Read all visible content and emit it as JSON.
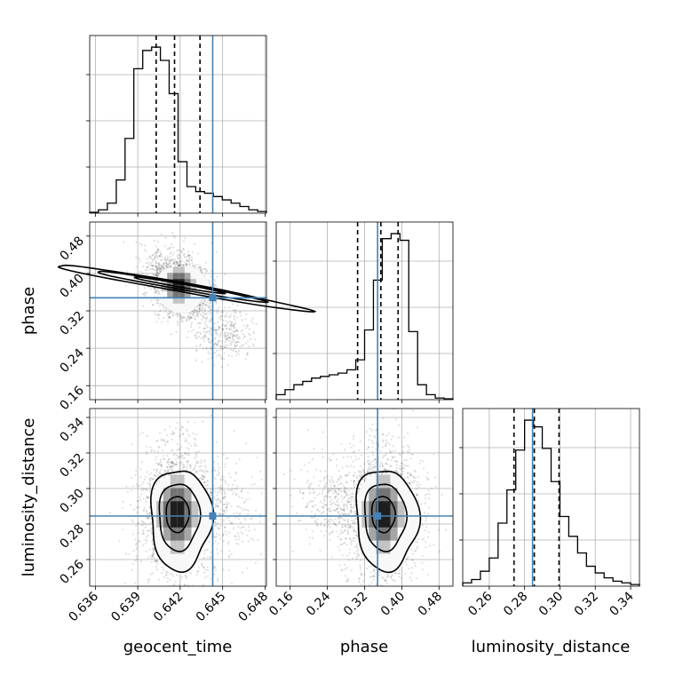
{
  "chart_data": {
    "type": "corner",
    "parameters": [
      "geocent_time",
      "phase",
      "luminosity_distance"
    ],
    "truth": {
      "geocent_time": 0.6443,
      "phase": 0.348,
      "luminosity_distance": 0.2845
    },
    "quantiles": {
      "geocent_time": [
        0.6403,
        0.6416,
        0.6434
      ],
      "phase": [
        0.305,
        0.355,
        0.392
      ],
      "luminosity_distance": [
        0.274,
        0.2855,
        0.2995
      ]
    },
    "axes": {
      "geocent_time": {
        "range": [
          0.6356,
          0.6481
        ],
        "ticks": [
          0.636,
          0.639,
          0.642,
          0.645,
          0.648
        ],
        "tick_labels": [
          "0.636",
          "0.639",
          "0.642",
          "0.645",
          "0.648"
        ]
      },
      "phase": {
        "range": [
          0.13,
          0.51
        ],
        "ticks": [
          0.16,
          0.24,
          0.32,
          0.4,
          0.48
        ],
        "tick_labels": [
          "0.16",
          "0.24",
          "0.32",
          "0.40",
          "0.48"
        ]
      },
      "luminosity_distance": {
        "range": [
          0.245,
          0.345
        ],
        "ticks": [
          0.26,
          0.28,
          0.3,
          0.32,
          0.34
        ],
        "tick_labels": [
          "0.26",
          "0.28",
          "0.30",
          "0.32",
          "0.34"
        ]
      }
    },
    "histograms": {
      "geocent_time": {
        "bin_edges": [
          0.6356,
          0.63622,
          0.63685,
          0.63748,
          0.6381,
          0.63872,
          0.63935,
          0.63998,
          0.6406,
          0.64122,
          0.64185,
          0.64248,
          0.6431,
          0.64372,
          0.64435,
          0.64498,
          0.6456,
          0.64622,
          0.64685,
          0.64748,
          0.6481
        ],
        "counts": [
          0.5,
          2,
          6,
          20,
          45,
          87,
          98,
          100,
          92,
          72,
          31,
          16,
          13,
          12,
          10,
          8,
          6,
          4,
          2,
          1
        ]
      },
      "phase": {
        "bin_edges": [
          0.13,
          0.149,
          0.168,
          0.187,
          0.206,
          0.225,
          0.244,
          0.263,
          0.282,
          0.301,
          0.32,
          0.339,
          0.358,
          0.377,
          0.396,
          0.415,
          0.434,
          0.453,
          0.472,
          0.491,
          0.51
        ],
        "counts": [
          3,
          6,
          9,
          11,
          13,
          14,
          15,
          16,
          18,
          24,
          42,
          72,
          97,
          100,
          96,
          41,
          9,
          3,
          1,
          0.5
        ]
      },
      "luminosity_distance": {
        "bin_edges": [
          0.245,
          0.25,
          0.255,
          0.26,
          0.265,
          0.27,
          0.275,
          0.28,
          0.285,
          0.29,
          0.295,
          0.3,
          0.305,
          0.31,
          0.315,
          0.32,
          0.325,
          0.33,
          0.335,
          0.34,
          0.345
        ],
        "counts": [
          2,
          4,
          9,
          17,
          38,
          58,
          82,
          100,
          96,
          83,
          63,
          42,
          30,
          20,
          12,
          8,
          5,
          3,
          2,
          1
        ]
      }
    }
  }
}
